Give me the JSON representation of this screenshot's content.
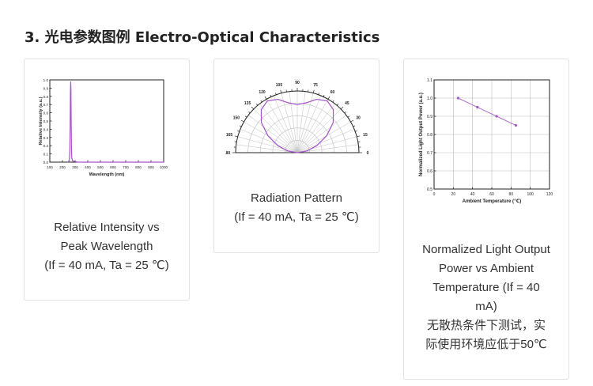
{
  "section": {
    "title": "3. 光电参数图例 Electro-Optical Characteristics"
  },
  "cards": [
    {
      "caption": [
        "Relative Intensity vs",
        "Peak Wavelength",
        "(If = 40 mA, Ta = 25 ℃)"
      ]
    },
    {
      "caption": [
        "Radiation Pattern",
        "(If = 40 mA, Ta = 25 ℃)"
      ]
    },
    {
      "caption": [
        "Normalized Light Output",
        "Power vs Ambient",
        "Temperature (If = 40",
        "mA)",
        "无散热条件下测试，实",
        "际使用环境应低于50℃"
      ]
    }
  ],
  "chart_data": [
    {
      "type": "line",
      "xlabel": "Wavelength (nm)",
      "ylabel": "Relative Intensity (a.u.)",
      "xlim": [
        100,
        1000
      ],
      "ylim": [
        0,
        1.0
      ],
      "xticks": [
        "100",
        "200",
        "300",
        "400",
        "500",
        "600",
        "700",
        "800",
        "900",
        "1000"
      ],
      "yticks": [
        "0.0",
        "0.1",
        "0.2",
        "0.3",
        "0.4",
        "0.5",
        "0.6",
        "0.7",
        "0.8",
        "0.9",
        "1.0"
      ],
      "series": [
        {
          "color": "#a455c8",
          "x": [
            240,
            250,
            255,
            258,
            261,
            263,
            265,
            267,
            269,
            271,
            274,
            280,
            295,
            320,
            1000
          ],
          "y": [
            0.0,
            0.01,
            0.03,
            0.12,
            0.45,
            0.85,
            0.98,
            0.88,
            0.5,
            0.18,
            0.05,
            0.015,
            0.01,
            0.0,
            0.0
          ]
        }
      ],
      "grid": false
    },
    {
      "type": "polar",
      "angle_labels": [
        "0",
        "15",
        "30",
        "45",
        "60",
        "75",
        "90",
        "105",
        "120",
        "135",
        "150",
        "165",
        "180"
      ],
      "color": "#a455c8",
      "pattern_angles_deg": [
        10,
        20,
        30,
        40,
        50,
        60,
        70,
        80,
        90,
        100,
        110,
        120,
        130,
        140,
        150,
        160,
        170
      ],
      "pattern_values": [
        0.16,
        0.34,
        0.55,
        0.76,
        0.91,
        0.97,
        0.92,
        0.82,
        0.78,
        0.82,
        0.92,
        0.97,
        0.91,
        0.76,
        0.55,
        0.34,
        0.16
      ]
    },
    {
      "type": "line",
      "xlabel": "Ambient Temperature (℃)",
      "ylabel": "Normalized Light Output Power (a.u.)",
      "xlim": [
        0,
        120
      ],
      "ylim": [
        0.5,
        1.1
      ],
      "xticks": [
        "0",
        "20",
        "40",
        "60",
        "80",
        "100",
        "120"
      ],
      "yticks": [
        "0.5",
        "0.6",
        "0.7",
        "0.8",
        "0.9",
        "1.0",
        "1.1"
      ],
      "grid": true,
      "series": [
        {
          "color": "#a455c8",
          "x": [
            25,
            45,
            65,
            85
          ],
          "y": [
            1.0,
            0.95,
            0.9,
            0.85
          ]
        }
      ]
    }
  ]
}
